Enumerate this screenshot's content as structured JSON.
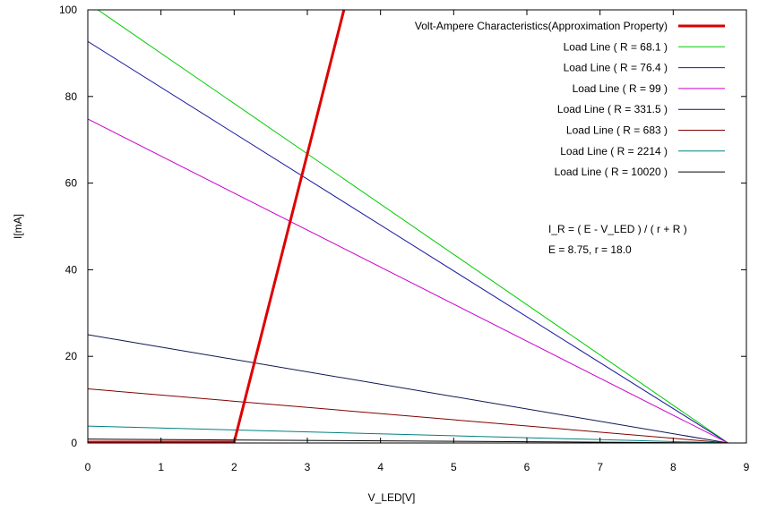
{
  "chart_data": {
    "type": "line",
    "xlabel": "V_LED[V]",
    "ylabel": "I[mA]",
    "xlim": [
      0,
      9
    ],
    "ylim": [
      0,
      100
    ],
    "xticks": [
      "0",
      "1",
      "2",
      "3",
      "4",
      "5",
      "6",
      "7",
      "8",
      "9"
    ],
    "yticks": [
      "0",
      "20",
      "40",
      "60",
      "80",
      "100"
    ],
    "grid": false,
    "legend_position": "top-right",
    "series": [
      {
        "name": "Volt-Ampere Characteristics(Approximation Property)",
        "color": "#dd0000",
        "x": [
          0,
          2.0,
          3.5
        ],
        "y": [
          0.2,
          0.2,
          100
        ]
      },
      {
        "name": "Load Line ( R = 68.1 )",
        "color": "#00cc00",
        "x": [
          0,
          8.75
        ],
        "y": [
          101.6,
          0
        ]
      },
      {
        "name": "Load Line ( R = 76.4 )",
        "color": "#1a1aa0",
        "x": [
          0,
          8.75
        ],
        "y": [
          92.7,
          0
        ]
      },
      {
        "name": "Load Line ( R = 99 )",
        "color": "#cc00cc",
        "x": [
          0,
          8.75
        ],
        "y": [
          74.8,
          0
        ]
      },
      {
        "name": "Load Line ( R = 331.5 )",
        "color": "#0d1650",
        "x": [
          0,
          8.75
        ],
        "y": [
          25.0,
          0
        ]
      },
      {
        "name": "Load Line ( R = 683 )",
        "color": "#800000",
        "x": [
          0,
          8.75
        ],
        "y": [
          12.5,
          0
        ]
      },
      {
        "name": "Load Line ( R = 2214 )",
        "color": "#008080",
        "x": [
          0,
          8.75
        ],
        "y": [
          3.9,
          0
        ]
      },
      {
        "name": "Load Line ( R = 10020 )",
        "color": "#000000",
        "x": [
          0,
          8.75
        ],
        "y": [
          0.9,
          0
        ]
      }
    ],
    "annotations": [
      "I_R = ( E - V_LED ) / ( r + R )",
      "E = 8.75, r = 18.0"
    ]
  }
}
